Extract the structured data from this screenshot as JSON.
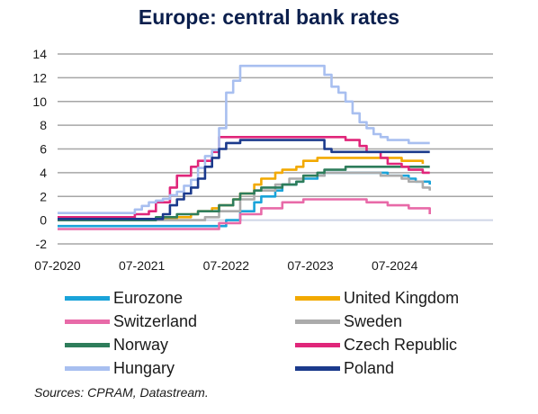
{
  "chart_data": {
    "type": "line",
    "title": "Europe: central bank rates",
    "xlabel": "",
    "ylabel": "",
    "ylim": [
      -2,
      14
    ],
    "yticks": [
      -2,
      0,
      2,
      4,
      6,
      8,
      10,
      12,
      14
    ],
    "xlim": [
      "2020-07",
      "2025-09"
    ],
    "xticks": [
      {
        "label": "07-2020",
        "date": "2020-07"
      },
      {
        "label": "07-2021",
        "date": "2021-07"
      },
      {
        "label": "07-2022",
        "date": "2022-07"
      },
      {
        "label": "07-2023",
        "date": "2023-07"
      },
      {
        "label": "07-2024",
        "date": "2024-07"
      }
    ],
    "grid": "horizontal",
    "legend_position": "bottom",
    "series": [
      {
        "name": "Eurozone",
        "color": "#1aa3d9",
        "points": [
          [
            "2020-07",
            -0.5
          ],
          [
            "2022-07",
            -0.5
          ],
          [
            "2022-07",
            0
          ],
          [
            "2022-09",
            0
          ],
          [
            "2022-09",
            0.75
          ],
          [
            "2022-11",
            0.75
          ],
          [
            "2022-11",
            1.5
          ],
          [
            "2022-12",
            1.5
          ],
          [
            "2022-12",
            2.0
          ],
          [
            "2023-02",
            2.0
          ],
          [
            "2023-02",
            2.5
          ],
          [
            "2023-03",
            2.5
          ],
          [
            "2023-03",
            3.0
          ],
          [
            "2023-05",
            3.0
          ],
          [
            "2023-05",
            3.25
          ],
          [
            "2023-06",
            3.25
          ],
          [
            "2023-06",
            3.5
          ],
          [
            "2023-08",
            3.5
          ],
          [
            "2023-08",
            3.75
          ],
          [
            "2023-09",
            3.75
          ],
          [
            "2023-09",
            4.0
          ],
          [
            "2024-06",
            4.0
          ],
          [
            "2024-06",
            3.75
          ],
          [
            "2024-09",
            3.75
          ],
          [
            "2024-09",
            3.5
          ],
          [
            "2024-10",
            3.5
          ],
          [
            "2024-10",
            3.25
          ],
          [
            "2024-12",
            3.25
          ],
          [
            "2024-12",
            3.0
          ]
        ]
      },
      {
        "name": "United Kingdom",
        "color": "#f2a900",
        "points": [
          [
            "2020-07",
            0.1
          ],
          [
            "2021-12",
            0.1
          ],
          [
            "2021-12",
            0.25
          ],
          [
            "2022-02",
            0.25
          ],
          [
            "2022-02",
            0.5
          ],
          [
            "2022-03",
            0.5
          ],
          [
            "2022-03",
            0.75
          ],
          [
            "2022-05",
            0.75
          ],
          [
            "2022-05",
            1.0
          ],
          [
            "2022-06",
            1.0
          ],
          [
            "2022-06",
            1.25
          ],
          [
            "2022-08",
            1.25
          ],
          [
            "2022-08",
            1.75
          ],
          [
            "2022-09",
            1.75
          ],
          [
            "2022-09",
            2.25
          ],
          [
            "2022-11",
            2.25
          ],
          [
            "2022-11",
            3.0
          ],
          [
            "2022-12",
            3.0
          ],
          [
            "2022-12",
            3.5
          ],
          [
            "2023-02",
            3.5
          ],
          [
            "2023-02",
            4.0
          ],
          [
            "2023-03",
            4.0
          ],
          [
            "2023-03",
            4.25
          ],
          [
            "2023-05",
            4.25
          ],
          [
            "2023-05",
            4.5
          ],
          [
            "2023-06",
            4.5
          ],
          [
            "2023-06",
            5.0
          ],
          [
            "2023-08",
            5.0
          ],
          [
            "2023-08",
            5.25
          ],
          [
            "2024-08",
            5.25
          ],
          [
            "2024-08",
            5.0
          ],
          [
            "2024-11",
            5.0
          ],
          [
            "2024-11",
            4.75
          ]
        ]
      },
      {
        "name": "Switzerland",
        "color": "#e86aa8",
        "points": [
          [
            "2020-07",
            -0.75
          ],
          [
            "2022-06",
            -0.75
          ],
          [
            "2022-06",
            -0.25
          ],
          [
            "2022-09",
            -0.25
          ],
          [
            "2022-09",
            0.5
          ],
          [
            "2022-12",
            0.5
          ],
          [
            "2022-12",
            1.0
          ],
          [
            "2023-03",
            1.0
          ],
          [
            "2023-03",
            1.5
          ],
          [
            "2023-06",
            1.5
          ],
          [
            "2023-06",
            1.75
          ],
          [
            "2024-03",
            1.75
          ],
          [
            "2024-03",
            1.5
          ],
          [
            "2024-06",
            1.5
          ],
          [
            "2024-06",
            1.25
          ],
          [
            "2024-09",
            1.25
          ],
          [
            "2024-09",
            1.0
          ],
          [
            "2024-12",
            1.0
          ],
          [
            "2024-12",
            0.5
          ]
        ]
      },
      {
        "name": "Sweden",
        "color": "#ababab",
        "points": [
          [
            "2020-07",
            0
          ],
          [
            "2022-04",
            0
          ],
          [
            "2022-04",
            0.25
          ],
          [
            "2022-06",
            0.25
          ],
          [
            "2022-06",
            0.75
          ],
          [
            "2022-09",
            0.75
          ],
          [
            "2022-09",
            1.75
          ],
          [
            "2022-11",
            1.75
          ],
          [
            "2022-11",
            2.5
          ],
          [
            "2023-02",
            2.5
          ],
          [
            "2023-02",
            3.0
          ],
          [
            "2023-04",
            3.0
          ],
          [
            "2023-04",
            3.5
          ],
          [
            "2023-06",
            3.5
          ],
          [
            "2023-06",
            3.75
          ],
          [
            "2023-09",
            3.75
          ],
          [
            "2023-09",
            4.0
          ],
          [
            "2024-05",
            4.0
          ],
          [
            "2024-05",
            3.75
          ],
          [
            "2024-08",
            3.75
          ],
          [
            "2024-08",
            3.5
          ],
          [
            "2024-09",
            3.5
          ],
          [
            "2024-09",
            3.25
          ],
          [
            "2024-11",
            3.25
          ],
          [
            "2024-11",
            2.75
          ],
          [
            "2024-12",
            2.75
          ],
          [
            "2024-12",
            2.5
          ]
        ]
      },
      {
        "name": "Norway",
        "color": "#2e7d5b",
        "points": [
          [
            "2020-07",
            0
          ],
          [
            "2021-09",
            0
          ],
          [
            "2021-09",
            0.25
          ],
          [
            "2021-12",
            0.25
          ],
          [
            "2021-12",
            0.5
          ],
          [
            "2022-03",
            0.5
          ],
          [
            "2022-03",
            0.75
          ],
          [
            "2022-06",
            0.75
          ],
          [
            "2022-06",
            1.25
          ],
          [
            "2022-08",
            1.25
          ],
          [
            "2022-08",
            1.75
          ],
          [
            "2022-09",
            1.75
          ],
          [
            "2022-09",
            2.25
          ],
          [
            "2022-11",
            2.25
          ],
          [
            "2022-11",
            2.5
          ],
          [
            "2022-12",
            2.5
          ],
          [
            "2022-12",
            2.75
          ],
          [
            "2023-03",
            2.75
          ],
          [
            "2023-03",
            3.0
          ],
          [
            "2023-05",
            3.0
          ],
          [
            "2023-05",
            3.25
          ],
          [
            "2023-06",
            3.25
          ],
          [
            "2023-06",
            3.75
          ],
          [
            "2023-08",
            3.75
          ],
          [
            "2023-08",
            4.0
          ],
          [
            "2023-09",
            4.0
          ],
          [
            "2023-09",
            4.25
          ],
          [
            "2023-12",
            4.25
          ],
          [
            "2023-12",
            4.5
          ],
          [
            "2024-12",
            4.5
          ]
        ]
      },
      {
        "name": "Czech Republic",
        "color": "#e0267a",
        "points": [
          [
            "2020-07",
            0.25
          ],
          [
            "2021-06",
            0.25
          ],
          [
            "2021-06",
            0.5
          ],
          [
            "2021-08",
            0.5
          ],
          [
            "2021-08",
            0.75
          ],
          [
            "2021-09",
            0.75
          ],
          [
            "2021-09",
            1.5
          ],
          [
            "2021-11",
            1.5
          ],
          [
            "2021-11",
            2.75
          ],
          [
            "2021-12",
            2.75
          ],
          [
            "2021-12",
            3.75
          ],
          [
            "2022-02",
            3.75
          ],
          [
            "2022-02",
            4.5
          ],
          [
            "2022-03",
            4.5
          ],
          [
            "2022-03",
            5.0
          ],
          [
            "2022-05",
            5.0
          ],
          [
            "2022-05",
            5.75
          ],
          [
            "2022-06",
            5.75
          ],
          [
            "2022-06",
            7.0
          ],
          [
            "2023-12",
            7.0
          ],
          [
            "2023-12",
            6.75
          ],
          [
            "2024-02",
            6.75
          ],
          [
            "2024-02",
            6.25
          ],
          [
            "2024-03",
            6.25
          ],
          [
            "2024-03",
            5.75
          ],
          [
            "2024-05",
            5.75
          ],
          [
            "2024-05",
            5.25
          ],
          [
            "2024-06",
            5.25
          ],
          [
            "2024-06",
            4.75
          ],
          [
            "2024-08",
            4.75
          ],
          [
            "2024-08",
            4.5
          ],
          [
            "2024-09",
            4.5
          ],
          [
            "2024-09",
            4.25
          ],
          [
            "2024-11",
            4.25
          ],
          [
            "2024-11",
            4.0
          ],
          [
            "2024-12",
            4.0
          ]
        ]
      },
      {
        "name": "Hungary",
        "color": "#a8bff0",
        "points": [
          [
            "2020-07",
            0.6
          ],
          [
            "2021-06",
            0.6
          ],
          [
            "2021-06",
            0.9
          ],
          [
            "2021-07",
            0.9
          ],
          [
            "2021-07",
            1.2
          ],
          [
            "2021-08",
            1.2
          ],
          [
            "2021-08",
            1.5
          ],
          [
            "2021-09",
            1.5
          ],
          [
            "2021-09",
            1.65
          ],
          [
            "2021-10",
            1.65
          ],
          [
            "2021-10",
            1.8
          ],
          [
            "2021-11",
            1.8
          ],
          [
            "2021-11",
            2.1
          ],
          [
            "2021-12",
            2.1
          ],
          [
            "2021-12",
            2.4
          ],
          [
            "2022-01",
            2.4
          ],
          [
            "2022-01",
            2.9
          ],
          [
            "2022-02",
            2.9
          ],
          [
            "2022-02",
            3.4
          ],
          [
            "2022-03",
            3.4
          ],
          [
            "2022-03",
            4.4
          ],
          [
            "2022-04",
            4.4
          ],
          [
            "2022-04",
            5.4
          ],
          [
            "2022-05",
            5.4
          ],
          [
            "2022-05",
            5.9
          ],
          [
            "2022-06",
            5.9
          ],
          [
            "2022-06",
            7.75
          ],
          [
            "2022-07",
            7.75
          ],
          [
            "2022-07",
            10.75
          ],
          [
            "2022-08",
            10.75
          ],
          [
            "2022-08",
            11.75
          ],
          [
            "2022-09",
            11.75
          ],
          [
            "2022-09",
            13.0
          ],
          [
            "2023-09",
            13.0
          ],
          [
            "2023-09",
            12.25
          ],
          [
            "2023-10",
            12.25
          ],
          [
            "2023-10",
            11.25
          ],
          [
            "2023-11",
            11.25
          ],
          [
            "2023-11",
            10.75
          ],
          [
            "2023-12",
            10.75
          ],
          [
            "2023-12",
            10.0
          ],
          [
            "2024-01",
            10.0
          ],
          [
            "2024-01",
            9.0
          ],
          [
            "2024-02",
            9.0
          ],
          [
            "2024-02",
            8.25
          ],
          [
            "2024-03",
            8.25
          ],
          [
            "2024-03",
            7.75
          ],
          [
            "2024-04",
            7.75
          ],
          [
            "2024-04",
            7.25
          ],
          [
            "2024-05",
            7.25
          ],
          [
            "2024-05",
            7.0
          ],
          [
            "2024-06",
            7.0
          ],
          [
            "2024-06",
            6.75
          ],
          [
            "2024-09",
            6.75
          ],
          [
            "2024-09",
            6.5
          ],
          [
            "2024-12",
            6.5
          ]
        ]
      },
      {
        "name": "Poland",
        "color": "#1b3a8c",
        "points": [
          [
            "2020-07",
            0.1
          ],
          [
            "2021-10",
            0.1
          ],
          [
            "2021-10",
            0.5
          ],
          [
            "2021-11",
            0.5
          ],
          [
            "2021-11",
            1.25
          ],
          [
            "2021-12",
            1.25
          ],
          [
            "2021-12",
            1.75
          ],
          [
            "2022-01",
            1.75
          ],
          [
            "2022-01",
            2.25
          ],
          [
            "2022-02",
            2.25
          ],
          [
            "2022-02",
            2.75
          ],
          [
            "2022-03",
            2.75
          ],
          [
            "2022-03",
            3.5
          ],
          [
            "2022-04",
            3.5
          ],
          [
            "2022-04",
            4.5
          ],
          [
            "2022-05",
            4.5
          ],
          [
            "2022-05",
            5.25
          ],
          [
            "2022-06",
            5.25
          ],
          [
            "2022-06",
            6.0
          ],
          [
            "2022-07",
            6.0
          ],
          [
            "2022-07",
            6.5
          ],
          [
            "2022-09",
            6.5
          ],
          [
            "2022-09",
            6.75
          ],
          [
            "2023-09",
            6.75
          ],
          [
            "2023-09",
            6.0
          ],
          [
            "2023-10",
            6.0
          ],
          [
            "2023-10",
            5.75
          ],
          [
            "2024-12",
            5.75
          ]
        ]
      }
    ],
    "source": "Sources: CPRAM, Datastream."
  }
}
